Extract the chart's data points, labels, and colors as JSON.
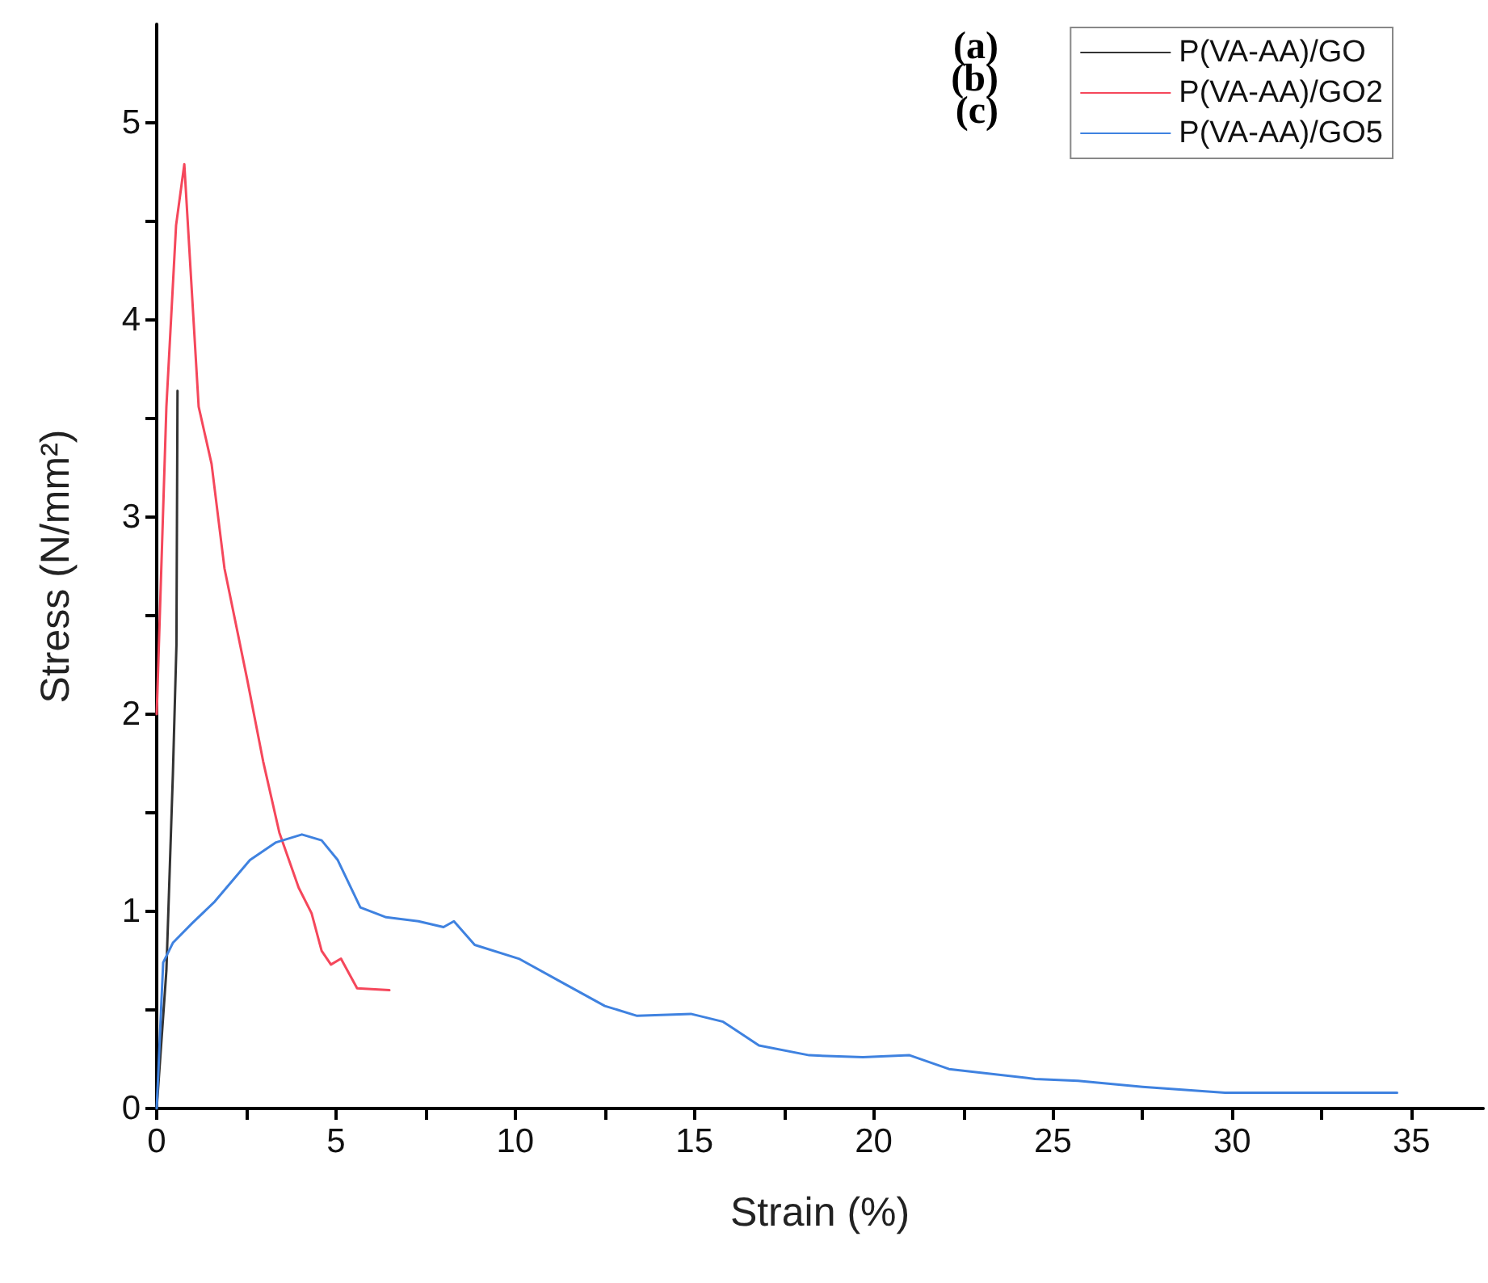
{
  "chart_data": {
    "type": "line",
    "xlabel": "Strain (%)",
    "ylabel": "Stress (N/mm²)",
    "xlim": [
      0,
      37
    ],
    "ylim": [
      0,
      5.5
    ],
    "xticks": [
      0,
      {
        "value": 2.5,
        "label": null
      },
      5,
      {
        "value": 7.5,
        "label": null
      },
      10,
      {
        "value": 12.5,
        "label": null
      },
      15,
      {
        "value": 17.5,
        "label": null
      },
      20,
      {
        "value": 22.5,
        "label": null
      },
      25,
      {
        "value": 27.5,
        "label": null
      },
      30,
      {
        "value": 32.5,
        "label": null
      },
      35
    ],
    "yticks": [
      0,
      {
        "value": 0.5,
        "label": null
      },
      1,
      {
        "value": 1.5,
        "label": null
      },
      2,
      {
        "value": 2.5,
        "label": null
      },
      3,
      {
        "value": 3.5,
        "label": null
      },
      4,
      {
        "value": 4.5,
        "label": null
      },
      5
    ],
    "grid": false,
    "legend": "top right",
    "marker": "none",
    "line_style": "solid",
    "annotations": [
      "(a)",
      "(b)",
      "(c)"
    ],
    "series": [
      {
        "name": "P(VA-AA)/GO",
        "color": "#333333",
        "x": [
          0,
          0.27,
          0.45,
          0.55,
          0.58
        ],
        "values": [
          0,
          0.7,
          1.69,
          2.35,
          3.64
        ]
      },
      {
        "name": "P(VA-AA)/GO2",
        "color": "#f5475b",
        "x": [
          0,
          0.27,
          0.54,
          0.77,
          1.17,
          1.53,
          1.89,
          2.52,
          2.97,
          3.42,
          3.96,
          4.32,
          4.6,
          4.86,
          5.14,
          5.2,
          5.59,
          6.49
        ],
        "values": [
          2.0,
          3.56,
          4.48,
          4.79,
          3.56,
          3.27,
          2.74,
          2.18,
          1.76,
          1.4,
          1.12,
          0.99,
          0.8,
          0.73,
          0.76,
          0.74,
          0.61,
          0.6
        ]
      },
      {
        "name": "P(VA-AA)/GO5",
        "color": "#3f82e0",
        "x": [
          0,
          0.18,
          0.45,
          0.99,
          1.62,
          2.6,
          3.33,
          4.05,
          4.6,
          5.05,
          5.68,
          6.4,
          7.3,
          8.0,
          8.29,
          8.87,
          10.1,
          11.3,
          12.5,
          13.4,
          14.9,
          15.8,
          16.8,
          18.2,
          19.7,
          21.0,
          22.1,
          24.5,
          25.7,
          27.5,
          29.8,
          34.6
        ],
        "values": [
          0,
          0.74,
          0.84,
          0.94,
          1.05,
          1.26,
          1.35,
          1.39,
          1.36,
          1.26,
          1.02,
          0.97,
          0.95,
          0.92,
          0.95,
          0.83,
          0.76,
          0.64,
          0.52,
          0.47,
          0.48,
          0.44,
          0.32,
          0.27,
          0.26,
          0.27,
          0.2,
          0.15,
          0.14,
          0.11,
          0.08,
          0.08
        ]
      }
    ]
  }
}
